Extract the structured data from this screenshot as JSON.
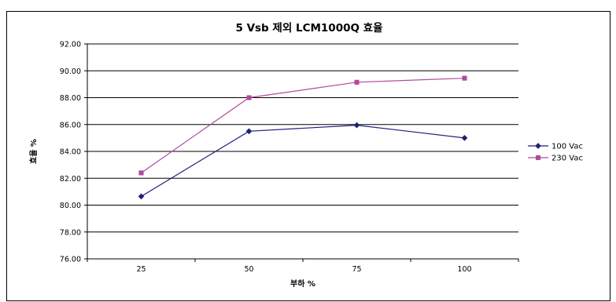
{
  "chart_data": {
    "type": "line",
    "title": "5 Vsb 제외 LCM1000Q 효율",
    "xlabel": "부하 %",
    "ylabel": "효율 %",
    "categories": [
      "25",
      "50",
      "75",
      "100"
    ],
    "ylim": [
      76.0,
      92.0
    ],
    "ytick_step": 2.0,
    "y_tick_labels": [
      "76.00",
      "78.00",
      "80.00",
      "82.00",
      "84.00",
      "86.00",
      "88.00",
      "90.00",
      "92.00"
    ],
    "grid": true,
    "legend_position": "right",
    "series": [
      {
        "name": "100 Vac",
        "values": [
          80.65,
          85.5,
          85.95,
          85.0
        ],
        "color": "#1f1f7a",
        "marker": "diamond"
      },
      {
        "name": "230 Vac",
        "values": [
          82.4,
          88.0,
          89.15,
          89.45
        ],
        "color": "#b04a9c",
        "marker": "square"
      }
    ]
  }
}
